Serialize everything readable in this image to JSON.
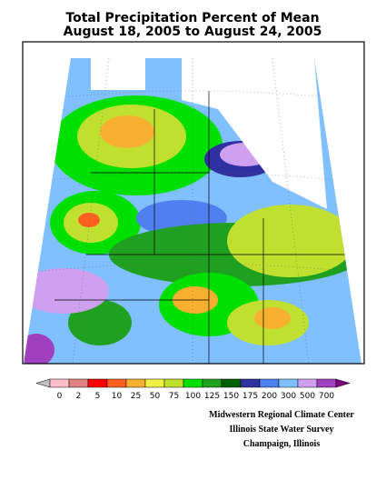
{
  "title": "Total Precipitation Percent of Mean",
  "subtitle": "August 18, 2005 to August 24, 2005",
  "legend": {
    "labels": [
      0,
      2,
      5,
      10,
      25,
      50,
      75,
      100,
      125,
      150,
      175,
      200,
      300,
      500,
      700
    ],
    "colors": [
      "#c0c0c0",
      "#ffc0cb",
      "#e08080",
      "#ff0000",
      "#ff6020",
      "#f8b030",
      "#f0f040",
      "#c0e030",
      "#00e000",
      "#20a020",
      "#006000",
      "#3030a0",
      "#5080f0",
      "#80c0ff",
      "#d0a0f0",
      "#a040c0",
      "#800080"
    ]
  },
  "credits": [
    "Midwestern Regional Climate Center",
    "Illinois State Water Survey",
    "Champaign, Illinois"
  ]
}
